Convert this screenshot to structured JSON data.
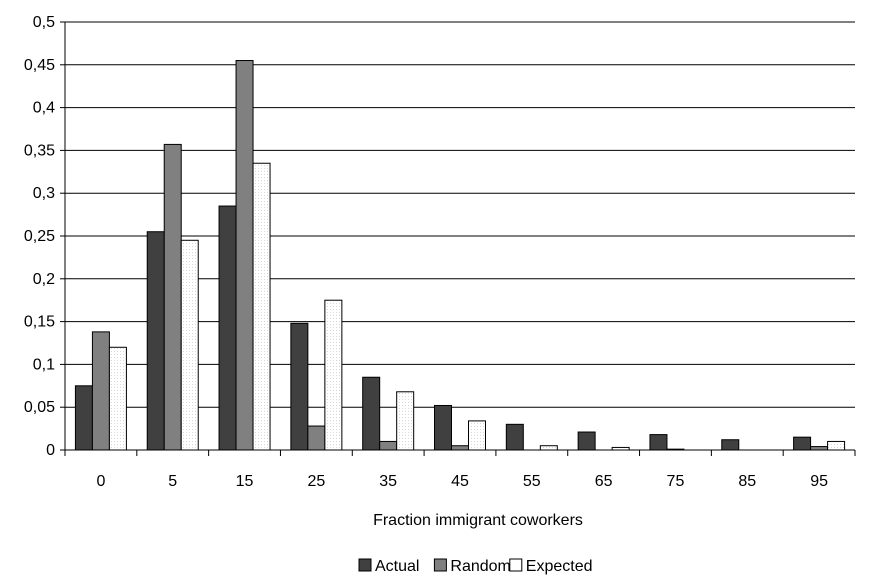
{
  "chart_data": {
    "type": "bar",
    "categories": [
      "0",
      "5",
      "15",
      "25",
      "35",
      "45",
      "55",
      "65",
      "75",
      "85",
      "95"
    ],
    "series": [
      {
        "name": "Actual",
        "color": "#404040",
        "values": [
          0.075,
          0.255,
          0.285,
          0.148,
          0.085,
          0.052,
          0.03,
          0.021,
          0.018,
          0.012,
          0.015
        ]
      },
      {
        "name": "Random",
        "color": "#808080",
        "values": [
          0.138,
          0.357,
          0.455,
          0.028,
          0.01,
          0.005,
          0.0,
          0.0,
          0.001,
          0.0,
          0.004
        ]
      },
      {
        "name": "Expected",
        "color": "#ffffff",
        "values": [
          0.12,
          0.245,
          0.335,
          0.175,
          0.068,
          0.034,
          0.005,
          0.003,
          0.0,
          0.0,
          0.01
        ]
      }
    ],
    "title": "",
    "xlabel": "Fraction immigrant coworkers",
    "ylabel": "",
    "ylim": [
      0,
      0.5
    ],
    "yticks": [
      0,
      0.05,
      0.1,
      0.15,
      0.2,
      0.25,
      0.3,
      0.35,
      0.4,
      0.45,
      0.5
    ],
    "ytick_labels": [
      "0",
      "0,05",
      "0,1",
      "0,15",
      "0,2",
      "0,25",
      "0,3",
      "0,35",
      "0,4",
      "0,45",
      "0,5"
    ],
    "grid": "horizontal",
    "legend_position": "bottom-center"
  }
}
